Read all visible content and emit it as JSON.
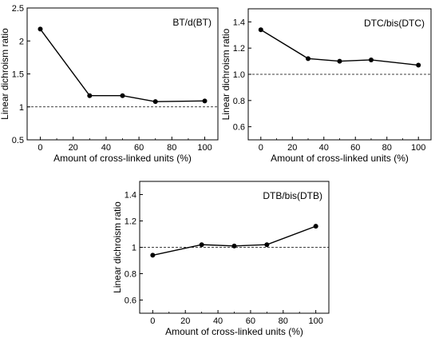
{
  "chart_data": [
    {
      "type": "line",
      "label": "BT/d(BT)",
      "xlabel": "Amount of cross-linked units (%)",
      "ylabel": "Linear dichroism ratio",
      "xlim": [
        -8,
        108
      ],
      "ylim": [
        0.5,
        2.5
      ],
      "xticks": [
        0,
        20,
        40,
        60,
        80,
        100
      ],
      "yticks": [
        0.5,
        1,
        1.5,
        2,
        2.5
      ],
      "ytick_labels": [
        "0.5",
        "1",
        "1.5",
        "2",
        "2.5"
      ],
      "reference_line": 1,
      "x": [
        0,
        30,
        50,
        70,
        100
      ],
      "y": [
        2.18,
        1.17,
        1.17,
        1.08,
        1.09
      ]
    },
    {
      "type": "line",
      "label": "DTC/bis(DTC)",
      "xlabel": "Amount of cross-linked units (%)",
      "ylabel": "Linear dichroism ratio",
      "xlim": [
        -8,
        108
      ],
      "ylim": [
        0.5,
        1.5
      ],
      "xticks": [
        0,
        20,
        40,
        60,
        80,
        100
      ],
      "yticks": [
        0.6,
        0.8,
        1.0,
        1.2,
        1.4
      ],
      "ytick_labels": [
        "0.6",
        "0.8",
        "1.0",
        "1.2",
        "1.4"
      ],
      "reference_line": 1,
      "x": [
        0,
        30,
        50,
        70,
        100
      ],
      "y": [
        1.34,
        1.12,
        1.1,
        1.11,
        1.07
      ]
    },
    {
      "type": "line",
      "label": "DTB/bis(DTB)",
      "xlabel": "Amount of cross-linked units (%)",
      "ylabel": "Linear dichroism ratio",
      "xlim": [
        -8,
        108
      ],
      "ylim": [
        0.5,
        1.5
      ],
      "xticks": [
        0,
        20,
        40,
        60,
        80,
        100
      ],
      "yticks": [
        0.6,
        0.8,
        1,
        1.2,
        1.4
      ],
      "ytick_labels": [
        "0.6",
        "0.8",
        "1",
        "1.2",
        "1.4"
      ],
      "reference_line": 1,
      "x": [
        0,
        30,
        50,
        70,
        100
      ],
      "y": [
        0.94,
        1.02,
        1.01,
        1.02,
        1.16
      ]
    }
  ]
}
